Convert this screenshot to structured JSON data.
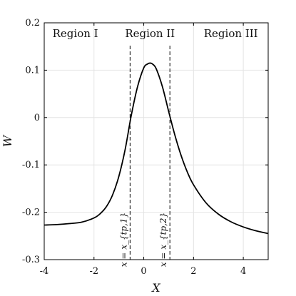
{
  "chart_data": {
    "type": "line",
    "xlabel": "X",
    "ylabel": "W",
    "xlim": [
      -4,
      5
    ],
    "ylim": [
      -0.3,
      0.2
    ],
    "xticks": [
      -4,
      -2,
      0,
      2,
      4
    ],
    "xtick_labels": [
      "-4",
      "-2",
      "0",
      "2",
      "4"
    ],
    "yticks": [
      -0.3,
      -0.2,
      -0.1,
      0,
      0.1,
      0.2
    ],
    "ytick_labels": [
      "-0.3",
      "-0.2",
      "-0.1",
      "0",
      "0.1",
      "0.2"
    ],
    "grid": true,
    "series": [
      {
        "x": [
          -4,
          -3.5,
          -3,
          -2.5,
          -2,
          -1.75,
          -1.5,
          -1.25,
          -1,
          -0.75,
          -0.5,
          -0.25,
          0,
          0.15,
          0.25,
          0.35,
          0.5,
          0.75,
          1,
          1.25,
          1.5,
          1.75,
          2,
          2.5,
          3,
          3.5,
          4,
          4.5,
          5
        ],
        "y": [
          -0.227,
          -0.226,
          -0.224,
          -0.221,
          -0.212,
          -0.203,
          -0.188,
          -0.163,
          -0.124,
          -0.068,
          0.005,
          0.065,
          0.105,
          0.113,
          0.115,
          0.113,
          0.103,
          0.065,
          0.013,
          -0.037,
          -0.08,
          -0.115,
          -0.142,
          -0.18,
          -0.204,
          -0.22,
          -0.231,
          -0.239,
          -0.245
        ],
        "color": "#000000"
      }
    ],
    "vlines": [
      {
        "x": -0.55,
        "label": "x = x_{tp,1}"
      },
      {
        "x": 1.05,
        "label": "x = x_{tp,2}"
      }
    ],
    "regions": [
      {
        "label": "Region I",
        "x": -2.75
      },
      {
        "label": "Region II",
        "x": 0.25
      },
      {
        "label": "Region III",
        "x": 3.5
      }
    ]
  }
}
